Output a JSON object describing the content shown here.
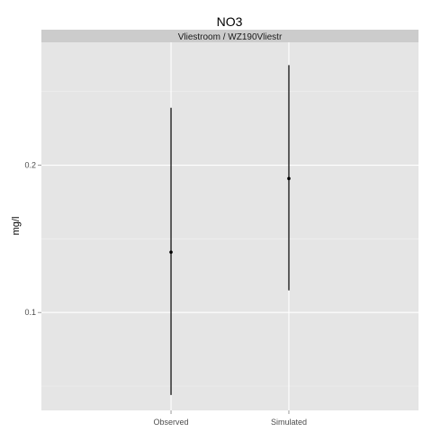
{
  "chart_data": {
    "type": "errorbar",
    "title": "NO3",
    "facet_label": "Vliestroom / WZ190Vliestr",
    "xlabel": "",
    "ylabel": "mg/l",
    "categories": [
      "Observed",
      "Simulated"
    ],
    "points": [
      {
        "category": "Observed",
        "value": 0.141,
        "low": 0.044,
        "high": 0.239
      },
      {
        "category": "Simulated",
        "value": 0.191,
        "low": 0.115,
        "high": 0.268
      }
    ],
    "y_ticks": [
      0.1,
      0.2
    ],
    "y_tick_labels": [
      "0.1",
      "0.2"
    ],
    "ylim": [
      0.0335,
      0.2835
    ],
    "grid": true,
    "colors": {
      "panel_bg": "#e5e5e5",
      "strip_bg": "#cccccc",
      "grid_major": "#ffffff",
      "grid_minor": "#f2f2f2",
      "mark": "#000000"
    }
  }
}
